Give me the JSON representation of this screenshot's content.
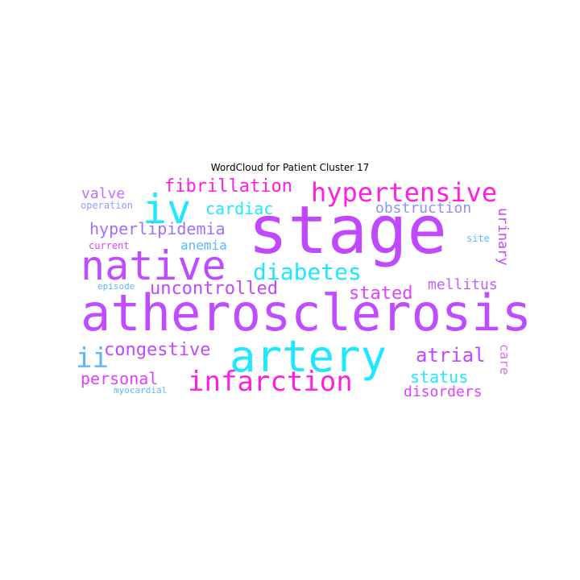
{
  "title": "WordCloud for Patient Cluster 17",
  "colors": {
    "purple": "#bf4dff",
    "magenta": "#ff1fe0",
    "cyan": "#1ee8ff",
    "blue": "#5ab8ff",
    "lavender": "#a070ff",
    "pink": "#e070f0",
    "periwinkle": "#8f8ff8"
  },
  "words": [
    {
      "text": "stage",
      "color": "#c048ff"
    },
    {
      "text": "atherosclerosis",
      "color": "#bf4dff"
    },
    {
      "text": "native",
      "color": "#bf4dff"
    },
    {
      "text": "artery",
      "color": "#1ee8ff"
    },
    {
      "text": "iv",
      "color": "#1ee8ff"
    },
    {
      "text": "hypertensive",
      "color": "#ff1fe0"
    },
    {
      "text": "infarction",
      "color": "#ff1fe0"
    },
    {
      "text": "diabetes",
      "color": "#1ee8ff"
    },
    {
      "text": "fibrillation",
      "color": "#ff1fe0"
    },
    {
      "text": "uncontrolled",
      "color": "#c048ff"
    },
    {
      "text": "hyperlipidemia",
      "color": "#a070ff"
    },
    {
      "text": "congestive",
      "color": "#c048ff"
    },
    {
      "text": "cardiac",
      "color": "#1ee8ff"
    },
    {
      "text": "obstruction",
      "color": "#8f8ff8"
    },
    {
      "text": "valve",
      "color": "#c070ff"
    },
    {
      "text": "ii",
      "color": "#5ab8ff"
    },
    {
      "text": "stated",
      "color": "#e040ff"
    },
    {
      "text": "mellitus",
      "color": "#c060ff"
    },
    {
      "text": "atrial",
      "color": "#c048ff"
    },
    {
      "text": "personal",
      "color": "#e040ff"
    },
    {
      "text": "status",
      "color": "#1ee8ff"
    },
    {
      "text": "disorders",
      "color": "#e040ff"
    },
    {
      "text": "anemia",
      "color": "#5ab8ff"
    },
    {
      "text": "urinary",
      "color": "#c048ff"
    },
    {
      "text": "care",
      "color": "#e070f0"
    },
    {
      "text": "operation",
      "color": "#8fa0f8"
    },
    {
      "text": "current",
      "color": "#e040ff"
    },
    {
      "text": "site",
      "color": "#5ab8ff"
    },
    {
      "text": "episode",
      "color": "#5ab8ff"
    },
    {
      "text": "myocardial",
      "color": "#5ab8ff"
    }
  ]
}
